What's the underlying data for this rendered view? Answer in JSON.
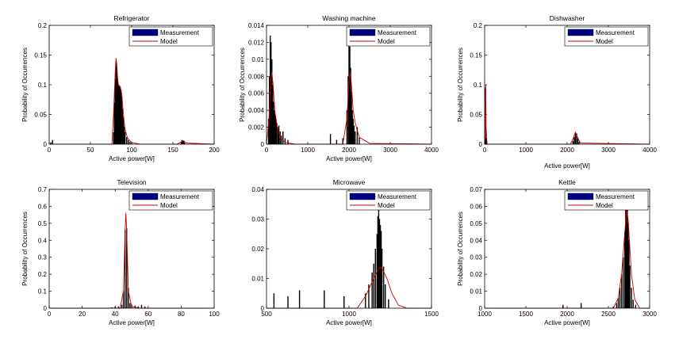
{
  "chart_data": [
    {
      "type": "bar",
      "title": "Refrigerator",
      "xlabel": "Active power[W]",
      "ylabel": "Probability of Occurrences",
      "xlim": [
        0,
        200
      ],
      "ylim": [
        0,
        0.2
      ],
      "xticks": [
        "0",
        "50",
        "100",
        "150",
        "200"
      ],
      "yticks": [
        "0",
        "0.05",
        "0.1",
        "0.15",
        "0.2"
      ],
      "legend": {
        "placement": "top-right",
        "entries": [
          "Measurement",
          "Model"
        ]
      },
      "series": [
        {
          "name": "Measurement",
          "kind": "bars",
          "x": [
            2,
            4,
            78,
            79,
            80,
            81,
            82,
            83,
            84,
            85,
            86,
            87,
            88,
            89,
            90,
            91,
            92,
            94,
            96,
            98,
            100,
            160,
            161,
            162,
            163,
            164
          ],
          "y": [
            0.003,
            0.007,
            0.02,
            0.07,
            0.11,
            0.14,
            0.13,
            0.11,
            0.1,
            0.098,
            0.097,
            0.092,
            0.08,
            0.06,
            0.045,
            0.03,
            0.02,
            0.012,
            0.007,
            0.004,
            0.002,
            0.004,
            0.007,
            0.006,
            0.005,
            0.003
          ]
        },
        {
          "name": "Model",
          "kind": "line",
          "x": [
            0,
            76,
            78,
            80,
            81,
            82,
            83,
            84,
            86,
            88,
            90,
            92,
            95,
            100,
            110,
            155,
            160,
            163,
            166,
            200
          ],
          "y": [
            0,
            0.0,
            0.05,
            0.12,
            0.145,
            0.135,
            0.11,
            0.1,
            0.097,
            0.085,
            0.05,
            0.025,
            0.01,
            0.003,
            0.0,
            0.0,
            0.004,
            0.006,
            0.002,
            0.0
          ]
        }
      ]
    },
    {
      "type": "bar",
      "title": "Washing machine",
      "xlabel": "Active power[W]",
      "ylabel": "Probability of Occurrences",
      "xlim": [
        0,
        4000
      ],
      "ylim": [
        0,
        0.014
      ],
      "xticks": [
        "0",
        "1000",
        "2000",
        "3000",
        "4000"
      ],
      "yticks": [
        "0",
        "0.002",
        "0.004",
        "0.006",
        "0.008",
        "0.01",
        "0.012",
        "0.014"
      ],
      "legend": {
        "placement": "top-right",
        "entries": [
          "Measurement",
          "Model"
        ]
      },
      "series": [
        {
          "name": "Measurement",
          "kind": "bars",
          "x": [
            50,
            70,
            90,
            110,
            130,
            150,
            170,
            190,
            210,
            230,
            250,
            280,
            300,
            330,
            360,
            400,
            450,
            520,
            1550,
            1700,
            1850,
            1950,
            1980,
            2000,
            2020,
            2040,
            2060,
            2080,
            2100,
            2120,
            2150,
            2200,
            2250
          ],
          "y": [
            0.003,
            0.008,
            0.0128,
            0.012,
            0.01,
            0.007,
            0.005,
            0.004,
            0.0035,
            0.003,
            0.0025,
            0.002,
            0.0022,
            0.0015,
            0.001,
            0.0015,
            0.0007,
            0.0005,
            0.0012,
            0.0005,
            0.0007,
            0.004,
            0.008,
            0.0118,
            0.0115,
            0.009,
            0.0062,
            0.004,
            0.003,
            0.0022,
            0.0015,
            0.002,
            0.0008
          ]
        },
        {
          "name": "Model",
          "kind": "line",
          "x": [
            0,
            60,
            100,
            130,
            160,
            200,
            260,
            330,
            450,
            700,
            1850,
            1950,
            2000,
            2030,
            2060,
            2100,
            2150,
            2250,
            2500,
            4000
          ],
          "y": [
            0,
            0.003,
            0.0075,
            0.0085,
            0.007,
            0.004,
            0.002,
            0.0008,
            0.0002,
            0.0,
            0.0,
            0.003,
            0.0075,
            0.0085,
            0.007,
            0.004,
            0.0025,
            0.0008,
            0.0001,
            0.0
          ]
        }
      ]
    },
    {
      "type": "bar",
      "title": "Dishwasher",
      "xlabel": "Active power[W]",
      "ylabel": "Probability of Occurrences",
      "xlim": [
        0,
        4000
      ],
      "ylim": [
        0,
        0.2
      ],
      "xticks": [
        "0",
        "1000",
        "2000",
        "3000",
        "4000"
      ],
      "yticks": [
        "0",
        "0.05",
        "0.1",
        "0.15",
        "0.2"
      ],
      "legend": {
        "placement": "top-right",
        "entries": [
          "Measurement",
          "Model"
        ]
      },
      "series": [
        {
          "name": "Measurement",
          "kind": "bars",
          "x": [
            20,
            40,
            2140,
            2170,
            2200,
            2230,
            2260,
            2290
          ],
          "y": [
            0.095,
            0.01,
            0.005,
            0.012,
            0.02,
            0.018,
            0.01,
            0.004
          ]
        },
        {
          "name": "Model",
          "kind": "line",
          "x": [
            0,
            15,
            25,
            35,
            60,
            2080,
            2150,
            2200,
            2250,
            2320,
            4000
          ],
          "y": [
            0,
            0.02,
            0.1,
            0.03,
            0.0,
            0.0,
            0.01,
            0.02,
            0.012,
            0.002,
            0.0
          ]
        }
      ]
    },
    {
      "type": "bar",
      "title": "Television",
      "xlabel": "Active power[W]",
      "ylabel": "Probability of Occurrences",
      "xlim": [
        0,
        100
      ],
      "ylim": [
        0,
        0.7
      ],
      "xticks": [
        "0",
        "20",
        "40",
        "60",
        "80",
        "100"
      ],
      "yticks": [
        "0",
        "0.1",
        "0.2",
        "0.3",
        "0.4",
        "0.5",
        "0.6",
        "0.7"
      ],
      "legend": {
        "placement": "top-right",
        "entries": [
          "Measurement",
          "Model"
        ]
      },
      "series": [
        {
          "name": "Measurement",
          "kind": "bars",
          "x": [
            38,
            40,
            42,
            44,
            45,
            46,
            47,
            48,
            49,
            50,
            52,
            54,
            56,
            58
          ],
          "y": [
            0.005,
            0.01,
            0.01,
            0.02,
            0.1,
            0.46,
            0.47,
            0.12,
            0.03,
            0.02,
            0.015,
            0.01,
            0.02,
            0.01
          ]
        },
        {
          "name": "Model",
          "kind": "line",
          "x": [
            0,
            43,
            45,
            46,
            46.5,
            47,
            48,
            50,
            55,
            100
          ],
          "y": [
            0,
            0.0,
            0.1,
            0.45,
            0.56,
            0.45,
            0.1,
            0.01,
            0.0,
            0.0
          ]
        }
      ]
    },
    {
      "type": "bar",
      "title": "Microwave",
      "xlabel": "Active power[W]",
      "ylabel": "",
      "xlim": [
        500,
        1500
      ],
      "ylim": [
        0,
        0.04
      ],
      "xticks": [
        "500",
        "1000",
        "1500"
      ],
      "yticks": [
        "0",
        "0.01",
        "0.02",
        "0.03",
        "0.04"
      ],
      "legend": {
        "placement": "top-right",
        "entries": [
          "Measurement",
          "Model"
        ]
      },
      "series": [
        {
          "name": "Measurement",
          "kind": "bars",
          "x": [
            545,
            630,
            700,
            850,
            970,
            1100,
            1120,
            1140,
            1150,
            1160,
            1170,
            1175,
            1180,
            1185,
            1190,
            1195,
            1200,
            1210,
            1220,
            1240
          ],
          "y": [
            0.005,
            0.004,
            0.006,
            0.006,
            0.004,
            0.005,
            0.008,
            0.012,
            0.015,
            0.02,
            0.025,
            0.031,
            0.034,
            0.03,
            0.028,
            0.026,
            0.02,
            0.014,
            0.008,
            0.003
          ]
        },
        {
          "name": "Model",
          "kind": "line",
          "x": [
            500,
            1050,
            1100,
            1150,
            1180,
            1200,
            1230,
            1260,
            1300,
            1350,
            1500
          ],
          "y": [
            0,
            0.0,
            0.004,
            0.01,
            0.0135,
            0.0135,
            0.01,
            0.005,
            0.001,
            0.0,
            0.0
          ]
        }
      ]
    },
    {
      "type": "bar",
      "title": "Kettle",
      "xlabel": "Active power[W]",
      "ylabel": "Probability of Occurrences",
      "xlim": [
        1000,
        3000
      ],
      "ylim": [
        0,
        0.07
      ],
      "xticks": [
        "1000",
        "1500",
        "2000",
        "2500",
        "3000"
      ],
      "yticks": [
        "0",
        "0.01",
        "0.02",
        "0.03",
        "0.04",
        "0.05",
        "0.06",
        "0.07"
      ],
      "legend": {
        "placement": "top-right",
        "entries": [
          "Measurement",
          "Model"
        ]
      },
      "series": [
        {
          "name": "Measurement",
          "kind": "bars",
          "x": [
            1950,
            2170,
            2560,
            2600,
            2620,
            2640,
            2660,
            2680,
            2700,
            2710,
            2720,
            2730,
            2740,
            2750,
            2760,
            2780,
            2800,
            2830
          ],
          "y": [
            0.002,
            0.003,
            0.001,
            0.003,
            0.006,
            0.012,
            0.02,
            0.03,
            0.045,
            0.058,
            0.062,
            0.06,
            0.05,
            0.04,
            0.025,
            0.012,
            0.005,
            0.002
          ]
        },
        {
          "name": "Model",
          "kind": "line",
          "x": [
            1000,
            2560,
            2620,
            2660,
            2700,
            2720,
            2740,
            2780,
            2820,
            2880,
            3000
          ],
          "y": [
            0,
            0.0,
            0.006,
            0.02,
            0.045,
            0.058,
            0.052,
            0.02,
            0.005,
            0.0,
            0.0
          ]
        }
      ]
    }
  ]
}
